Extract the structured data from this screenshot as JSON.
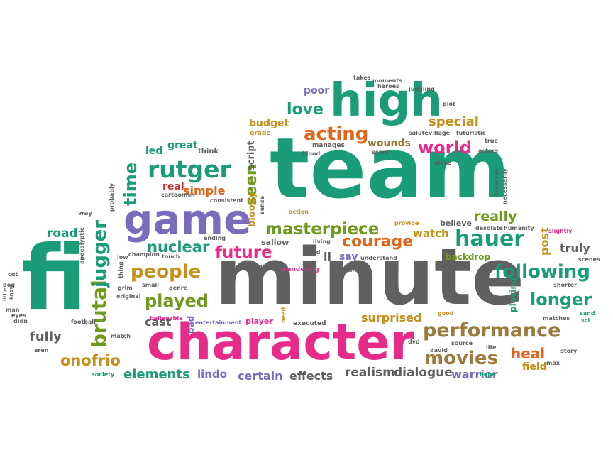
{
  "colors": {
    "green": "#1a9c78",
    "gray": "#606060",
    "pink": "#e62b8a",
    "purple": "#7a6bbd",
    "orange": "#e2651a",
    "olive": "#6e9a1e",
    "gold": "#c6901a",
    "red": "#cf2b2b",
    "brown": "#9c7a3c"
  },
  "words": [
    {
      "text": "team",
      "color": "green"
    },
    {
      "text": "minute",
      "color": "gray"
    },
    {
      "text": "fi",
      "color": "green"
    },
    {
      "text": "character",
      "color": "pink"
    },
    {
      "text": "high",
      "color": "green"
    },
    {
      "text": "game",
      "color": "purple"
    },
    {
      "text": "performance",
      "color": "brown"
    },
    {
      "text": "following",
      "color": "green"
    },
    {
      "text": "rutger",
      "color": "green"
    },
    {
      "text": "hauer",
      "color": "green"
    },
    {
      "text": "masterpiece",
      "color": "olive"
    },
    {
      "text": "acting",
      "color": "orange"
    },
    {
      "text": "world",
      "color": "pink"
    },
    {
      "text": "people",
      "color": "gold"
    },
    {
      "text": "future",
      "color": "pink"
    },
    {
      "text": "courage",
      "color": "orange"
    },
    {
      "text": "longer",
      "color": "green"
    },
    {
      "text": "movies",
      "color": "brown"
    },
    {
      "text": "played",
      "color": "olive"
    },
    {
      "text": "brutal",
      "color": "olive"
    },
    {
      "text": "jugger",
      "color": "green"
    },
    {
      "text": "love",
      "color": "green"
    },
    {
      "text": "special",
      "color": "gold"
    },
    {
      "text": "onofrio",
      "color": "gold"
    },
    {
      "text": "heal",
      "color": "orange"
    },
    {
      "text": "really",
      "color": "olive"
    },
    {
      "text": "nuclear",
      "color": "green"
    },
    {
      "text": "time",
      "color": "green"
    },
    {
      "text": "seen",
      "color": "olive"
    },
    {
      "text": "elements",
      "color": "green"
    },
    {
      "text": "dialogue",
      "color": "gray"
    },
    {
      "text": "realism",
      "color": "gray"
    },
    {
      "text": "warrior",
      "color": "purple"
    },
    {
      "text": "surprised",
      "color": "gold"
    },
    {
      "text": "fully",
      "color": "gray"
    },
    {
      "text": "cast",
      "color": "gray"
    },
    {
      "text": "simple",
      "color": "orange"
    },
    {
      "text": "budget",
      "color": "gold"
    },
    {
      "text": "effects",
      "color": "gray"
    },
    {
      "text": "certain",
      "color": "purple"
    },
    {
      "text": "lindo",
      "color": "purple"
    },
    {
      "text": "road",
      "color": "green"
    },
    {
      "text": "watch",
      "color": "gold"
    },
    {
      "text": "truly",
      "color": "gray"
    },
    {
      "text": "post",
      "color": "gold"
    },
    {
      "text": "field",
      "color": "gold"
    },
    {
      "text": "great",
      "color": "green"
    },
    {
      "text": "led",
      "color": "green"
    },
    {
      "text": "real",
      "color": "red"
    },
    {
      "text": "poor",
      "color": "purple"
    },
    {
      "text": "wounds",
      "color": "brown"
    },
    {
      "text": "script",
      "color": "gray"
    },
    {
      "text": "bloody",
      "color": "gold"
    },
    {
      "text": "say",
      "color": "purple"
    },
    {
      "text": "ll",
      "color": "gray"
    },
    {
      "text": "sallow",
      "color": "gray"
    },
    {
      "text": "think",
      "color": "gray"
    },
    {
      "text": "bad",
      "color": "purple"
    },
    {
      "text": "playing",
      "color": "green"
    },
    {
      "text": "backdrop",
      "color": "olive"
    },
    {
      "text": "believe",
      "color": "gray"
    },
    {
      "text": "grade",
      "color": "gold"
    },
    {
      "text": "manages",
      "color": "gray"
    },
    {
      "text": "scars",
      "color": "gray"
    },
    {
      "text": "blood",
      "color": "gray"
    },
    {
      "text": "cartoonish",
      "color": "gray"
    },
    {
      "text": "probably",
      "color": "gray"
    },
    {
      "text": "consistent",
      "color": "gray"
    },
    {
      "text": "action",
      "color": "gold"
    },
    {
      "text": "sense",
      "color": "gray"
    },
    {
      "text": "provide",
      "color": "gold"
    },
    {
      "text": "desolate",
      "color": "gray"
    },
    {
      "text": "humanity",
      "color": "gray"
    },
    {
      "text": "slightly",
      "color": "pink"
    },
    {
      "text": "shorter",
      "color": "gray"
    },
    {
      "text": "scenes",
      "color": "gray"
    },
    {
      "text": "sand",
      "color": "green"
    },
    {
      "text": "sci",
      "color": "green"
    },
    {
      "text": "matches",
      "color": "gray"
    },
    {
      "text": "story",
      "color": "gray"
    },
    {
      "text": "max",
      "color": "gray"
    },
    {
      "text": "hope",
      "color": "green"
    },
    {
      "text": "life",
      "color": "gray"
    },
    {
      "text": "source",
      "color": "gray"
    },
    {
      "text": "david",
      "color": "gray"
    },
    {
      "text": "dvd",
      "color": "gray"
    },
    {
      "text": "good",
      "color": "gold"
    },
    {
      "text": "executed",
      "color": "gray"
    },
    {
      "text": "need",
      "color": "gold"
    },
    {
      "text": "player",
      "color": "pink"
    },
    {
      "text": "entertainment",
      "color": "purple"
    },
    {
      "text": "believable",
      "color": "pink"
    },
    {
      "text": "genre",
      "color": "gray"
    },
    {
      "text": "small",
      "color": "gray"
    },
    {
      "text": "grim",
      "color": "gray"
    },
    {
      "text": "original",
      "color": "gray"
    },
    {
      "text": "match",
      "color": "gray"
    },
    {
      "text": "society",
      "color": "green"
    },
    {
      "text": "football",
      "color": "gray"
    },
    {
      "text": "aren",
      "color": "gray"
    },
    {
      "text": "didn",
      "color": "gray"
    },
    {
      "text": "eyes",
      "color": "gray"
    },
    {
      "text": "man",
      "color": "gray"
    },
    {
      "text": "know",
      "color": "gray"
    },
    {
      "text": "little",
      "color": "gray"
    },
    {
      "text": "dog",
      "color": "gray"
    },
    {
      "text": "cut",
      "color": "gray"
    },
    {
      "text": "apocalyptic",
      "color": "gray"
    },
    {
      "text": "way",
      "color": "gray"
    },
    {
      "text": "low",
      "color": "gray"
    },
    {
      "text": "champion",
      "color": "gray"
    },
    {
      "text": "touch",
      "color": "gray"
    },
    {
      "text": "thing",
      "color": "gray"
    },
    {
      "text": "ending",
      "color": "gray"
    },
    {
      "text": "far",
      "color": "gray"
    },
    {
      "text": "living",
      "color": "gray"
    },
    {
      "text": "kind",
      "color": "gray"
    },
    {
      "text": "wandering",
      "color": "pink"
    },
    {
      "text": "seeing",
      "color": "gray"
    },
    {
      "text": "understand",
      "color": "gray"
    },
    {
      "text": "takes",
      "color": "gray"
    },
    {
      "text": "moments",
      "color": "gray"
    },
    {
      "text": "heroes",
      "color": "gray"
    },
    {
      "text": "juggling",
      "color": "gray"
    },
    {
      "text": "plot",
      "color": "gray"
    },
    {
      "text": "true",
      "color": "gray"
    },
    {
      "text": "salute",
      "color": "gray"
    },
    {
      "text": "village",
      "color": "gray"
    },
    {
      "text": "futuristic",
      "color": "gray"
    },
    {
      "text": "actors",
      "color": "gray"
    },
    {
      "text": "place",
      "color": "gray"
    },
    {
      "text": "deserves",
      "color": "gray"
    },
    {
      "text": "necessarily",
      "color": "gray"
    }
  ]
}
